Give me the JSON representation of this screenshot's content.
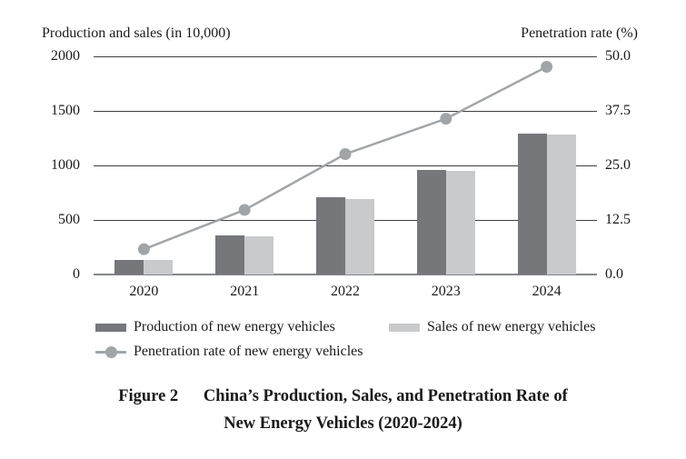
{
  "figure": {
    "caption_prefix": "Figure 2",
    "caption_line1": "China’s Production, Sales, and Penetration Rate of",
    "caption_line2": "New Energy Vehicles (2020-2024)"
  },
  "colors": {
    "production_bar": "#76777a",
    "sales_bar": "#c9cacc",
    "penetration_line": "#a2a5a7",
    "gridline": "#3f3f3f",
    "axis_line": "#85878a"
  },
  "chart_data": {
    "type": "bar",
    "subtype": "grouped-bars-with-line",
    "categories": [
      "2020",
      "2021",
      "2022",
      "2023",
      "2024"
    ],
    "series": [
      {
        "name": "Production of new energy vehicles",
        "type": "bar",
        "axis": "left",
        "color": "#76777a",
        "values": [
          136.6,
          354.5,
          705.8,
          958.7,
          1288.8
        ]
      },
      {
        "name": "Sales of new energy vehicles",
        "type": "bar",
        "axis": "left",
        "color": "#c9cacc",
        "values": [
          136.7,
          352.1,
          688.7,
          949.5,
          1286.6
        ]
      },
      {
        "name": "Penetration rate of new energy vehicles",
        "type": "line",
        "axis": "right",
        "color": "#a2a5a7",
        "values": [
          5.8,
          14.8,
          27.6,
          35.7,
          47.6
        ]
      }
    ],
    "left_axis": {
      "title": "Production and sales (in 10,000)",
      "ticks": [
        0,
        500,
        1000,
        1500,
        2000
      ],
      "range": [
        0,
        2000
      ]
    },
    "right_axis": {
      "title": "Penetration rate (%)",
      "ticks": [
        "0.0",
        "12.5",
        "25.0",
        "37.5",
        "50.0"
      ],
      "range": [
        0,
        50
      ]
    },
    "grid": true,
    "legend_position": "bottom"
  }
}
